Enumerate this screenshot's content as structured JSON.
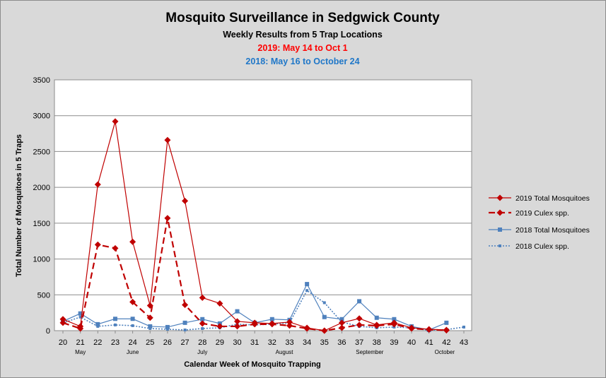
{
  "chart_data": {
    "type": "line",
    "title": "Mosquito Surveillance in Sedgwick County",
    "subtitle": "Weekly Results from 5 Trap Locations",
    "subtitle_2019": "2019: May 14 to Oct 1",
    "subtitle_2018": "2018: May 16 to October 24",
    "xlabel": "Calendar Week of Mosquito Trapping",
    "ylabel": "Total Number of Mosquitoes in 5 Traps",
    "ylim": [
      0,
      3500
    ],
    "y_ticks": [
      "0",
      "500",
      "1000",
      "1500",
      "2000",
      "2500",
      "3000",
      "3500"
    ],
    "categories": [
      "20",
      "21",
      "22",
      "23",
      "24",
      "25",
      "26",
      "27",
      "28",
      "29",
      "30",
      "31",
      "32",
      "33",
      "34",
      "35",
      "36",
      "37",
      "38",
      "39",
      "40",
      "41",
      "42",
      "43"
    ],
    "month_labels": [
      {
        "label": "May",
        "week": 21
      },
      {
        "label": "June",
        "week": 24
      },
      {
        "label": "July",
        "week": 28
      },
      {
        "label": "August",
        "week": 32.7
      },
      {
        "label": "September",
        "week": 37.6
      },
      {
        "label": "October",
        "week": 41.9
      }
    ],
    "grid": true,
    "legend_position": "right",
    "series": [
      {
        "name": "2019 Total Mosquitoes",
        "color": "#c00000",
        "style": "solid",
        "marker": "diamond",
        "x": [
          20,
          21,
          22,
          23,
          24,
          25,
          26,
          27,
          28,
          29,
          30,
          31,
          32,
          33,
          34,
          35,
          36,
          37,
          38,
          39,
          40,
          41,
          42
        ],
        "values": [
          160,
          60,
          2040,
          2920,
          1240,
          350,
          2660,
          1810,
          460,
          380,
          130,
          110,
          100,
          120,
          40,
          0,
          110,
          170,
          80,
          110,
          40,
          20,
          10
        ]
      },
      {
        "name": "2019 Culex spp.",
        "color": "#c00000",
        "style": "dashed",
        "marker": "diamond",
        "x": [
          20,
          21,
          22,
          23,
          24,
          25,
          26,
          27,
          28,
          29,
          30,
          31,
          32,
          33,
          34,
          35,
          36,
          37,
          38,
          39,
          40,
          41,
          42
        ],
        "values": [
          110,
          30,
          1200,
          1150,
          400,
          180,
          1570,
          360,
          100,
          60,
          60,
          90,
          90,
          70,
          30,
          0,
          40,
          80,
          70,
          90,
          30,
          15,
          5
        ]
      },
      {
        "name": "2018 Total Mosquitoes",
        "color": "#4f81bd",
        "style": "solid",
        "marker": "square",
        "x": [
          20,
          21,
          22,
          23,
          24,
          25,
          26,
          27,
          28,
          29,
          30,
          31,
          32,
          33,
          34,
          35,
          36,
          37,
          38,
          39,
          40,
          41,
          42
        ],
        "values": [
          130,
          240,
          90,
          165,
          165,
          60,
          50,
          110,
          160,
          100,
          270,
          110,
          160,
          150,
          650,
          190,
          160,
          410,
          180,
          160,
          60,
          10,
          110
        ]
      },
      {
        "name": "2018 Culex spp.",
        "color": "#4f81bd",
        "style": "dotted",
        "marker": "small-square",
        "x": [
          20,
          21,
          22,
          23,
          24,
          25,
          26,
          27,
          28,
          29,
          30,
          31,
          32,
          33,
          34,
          35,
          36,
          37,
          38,
          39,
          40,
          41,
          42,
          43
        ],
        "values": [
          110,
          190,
          60,
          80,
          70,
          30,
          20,
          10,
          30,
          40,
          90,
          80,
          90,
          110,
          560,
          390,
          120,
          60,
          40,
          50,
          40,
          5,
          15,
          50
        ]
      }
    ]
  }
}
